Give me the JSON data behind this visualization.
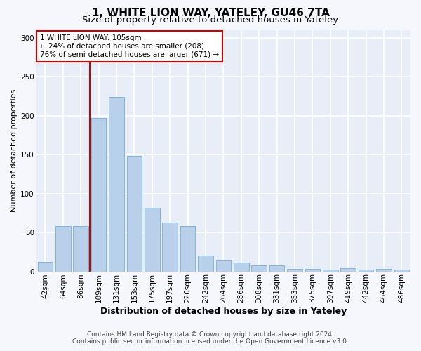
{
  "title1": "1, WHITE LION WAY, YATELEY, GU46 7TA",
  "title2": "Size of property relative to detached houses in Yateley",
  "xlabel": "Distribution of detached houses by size in Yateley",
  "ylabel": "Number of detached properties",
  "categories": [
    "42sqm",
    "64sqm",
    "86sqm",
    "109sqm",
    "131sqm",
    "153sqm",
    "175sqm",
    "197sqm",
    "220sqm",
    "242sqm",
    "264sqm",
    "286sqm",
    "308sqm",
    "331sqm",
    "353sqm",
    "375sqm",
    "397sqm",
    "419sqm",
    "442sqm",
    "464sqm",
    "486sqm"
  ],
  "values": [
    12,
    58,
    58,
    197,
    224,
    148,
    82,
    63,
    58,
    20,
    14,
    11,
    8,
    8,
    3,
    3,
    2,
    4,
    2,
    3,
    2
  ],
  "bar_color": "#b8d0ea",
  "bar_edge_color": "#7aadd4",
  "plot_bg_color": "#e8eef7",
  "fig_bg_color": "#f5f7fc",
  "grid_color": "#ffffff",
  "property_label": "1 WHITE LION WAY: 105sqm",
  "annotation_line1": "← 24% of detached houses are smaller (208)",
  "annotation_line2": "76% of semi-detached houses are larger (671) →",
  "vline_color": "#cc0000",
  "annotation_box_facecolor": "#ffffff",
  "annotation_box_edgecolor": "#cc0000",
  "footnote1": "Contains HM Land Registry data © Crown copyright and database right 2024.",
  "footnote2": "Contains public sector information licensed under the Open Government Licence v3.0.",
  "ylim": [
    0,
    310
  ],
  "yticks": [
    0,
    50,
    100,
    150,
    200,
    250,
    300
  ],
  "title1_fontsize": 11,
  "title2_fontsize": 9.5,
  "xlabel_fontsize": 9,
  "ylabel_fontsize": 8,
  "tick_fontsize": 7.5,
  "annotation_fontsize": 7.5,
  "footnote_fontsize": 6.5
}
